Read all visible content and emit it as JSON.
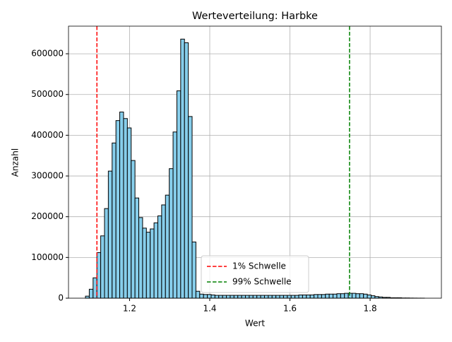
{
  "chart_data": {
    "type": "histogram",
    "title": "Werteverteilung: Harbke",
    "xlabel": "Wert",
    "ylabel": "Anzahl",
    "bins": [
      1.09,
      1.0995,
      1.109,
      1.1185,
      1.128,
      1.1375,
      1.147,
      1.1565,
      1.166,
      1.1755,
      1.185,
      1.1945,
      1.204,
      1.2135,
      1.223,
      1.2325,
      1.242,
      1.2515,
      1.261,
      1.2705,
      1.28,
      1.2895,
      1.299,
      1.3085,
      1.318,
      1.3275,
      1.337,
      1.3465,
      1.356,
      1.3655,
      1.375,
      1.3845,
      1.394,
      1.4035,
      1.413,
      1.4225,
      1.432,
      1.4415,
      1.451,
      1.4605,
      1.47,
      1.4795,
      1.489,
      1.4985,
      1.508,
      1.5175,
      1.527,
      1.5365,
      1.546,
      1.5555,
      1.565,
      1.5745,
      1.584,
      1.5935,
      1.603,
      1.6125,
      1.622,
      1.6315,
      1.641,
      1.6505,
      1.66,
      1.6695,
      1.679,
      1.6885,
      1.698,
      1.7075,
      1.717,
      1.7265,
      1.736,
      1.7455,
      1.755,
      1.7645,
      1.774,
      1.7835,
      1.793,
      1.8025,
      1.812,
      1.8215,
      1.831,
      1.8405,
      1.85,
      1.8595,
      1.869,
      1.8785,
      1.888,
      1.8975,
      1.907,
      1.9165,
      1.926,
      1.9355
    ],
    "values": [
      5000,
      22000,
      50000,
      112000,
      153000,
      220000,
      312000,
      381000,
      436000,
      457000,
      441000,
      418000,
      338000,
      246000,
      198000,
      172000,
      162000,
      170000,
      185000,
      202000,
      229000,
      253000,
      318000,
      408000,
      509000,
      636000,
      627000,
      446000,
      138000,
      17000,
      10000,
      9000,
      9000,
      8000,
      7000,
      7000,
      7000,
      7000,
      7000,
      7000,
      7000,
      7000,
      7000,
      7000,
      7000,
      7000,
      7000,
      7000,
      7000,
      7000,
      7000,
      7000,
      7000,
      7000,
      7000,
      7000,
      8000,
      8000,
      8000,
      8000,
      9000,
      9000,
      9000,
      10000,
      10000,
      10000,
      11000,
      11000,
      12000,
      12000,
      12000,
      11000,
      11000,
      10000,
      8000,
      6000,
      4000,
      3000,
      2000,
      2000,
      1000,
      1000,
      1000,
      500,
      500,
      300,
      200,
      100,
      100
    ],
    "color": "#87ceeb",
    "edgecolor": "#000000",
    "reference_lines": [
      {
        "name": "1% Schwelle",
        "value": 1.1186,
        "color": "#ff0000"
      },
      {
        "name": "99% Schwelle",
        "value": 1.7487,
        "color": "#008000"
      }
    ],
    "xlim": [
      1.0477,
      1.9778
    ],
    "ylim": [
      0,
      667800
    ],
    "xticks": [
      1.2,
      1.4,
      1.6,
      1.8
    ],
    "yticks": [
      0,
      100000,
      200000,
      300000,
      400000,
      500000,
      600000
    ],
    "grid": true,
    "legend_loc": "lower center"
  }
}
